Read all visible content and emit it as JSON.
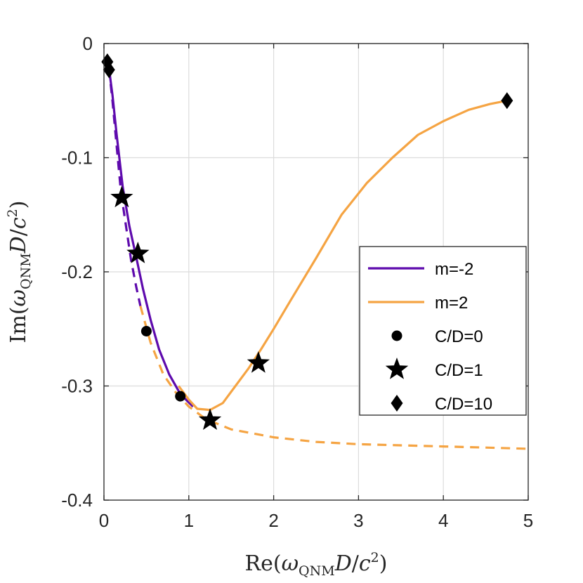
{
  "chart_data": {
    "type": "line",
    "xlabel": "Re(ω_QNM D/c²)",
    "ylabel": "Im(ω_QNM D/c²)",
    "xlabel_parts": {
      "pre": "Re(",
      "sym": "ω",
      "sub": "QNM",
      "mid": "D/c",
      "sup": "2",
      "post": ")"
    },
    "ylabel_parts": {
      "pre": "Im(",
      "sym": "ω",
      "sub": "QNM",
      "mid": "D/c",
      "sup": "2",
      "post": ")"
    },
    "xlim": [
      0,
      5
    ],
    "ylim": [
      -0.4,
      0
    ],
    "xticks": [
      0,
      1,
      2,
      3,
      4,
      5
    ],
    "yticks": [
      0,
      -0.1,
      -0.2,
      -0.3,
      -0.4
    ],
    "xtick_labels": [
      "0",
      "1",
      "2",
      "3",
      "4",
      "5"
    ],
    "ytick_labels": [
      "0",
      "-0.1",
      "-0.2",
      "-0.3",
      "-0.4"
    ],
    "grid": true,
    "legend_position": "right",
    "colors": {
      "m_neg2": "#5e0aad",
      "m_pos2": "#f5a443",
      "marker": "#000000",
      "grid": "#dcdcdc",
      "axis": "#262626"
    },
    "series": [
      {
        "name": "m=-2",
        "style": "solid",
        "color_key": "m_neg2",
        "x": [
          0.06,
          0.1,
          0.15,
          0.22,
          0.3,
          0.38,
          0.46,
          0.55,
          0.65,
          0.77,
          0.9,
          0.98,
          1.05
        ],
        "y": [
          -0.022,
          -0.045,
          -0.08,
          -0.125,
          -0.16,
          -0.187,
          -0.215,
          -0.242,
          -0.268,
          -0.29,
          -0.307,
          -0.313,
          -0.318
        ]
      },
      {
        "name": "m=-2 (dashed)",
        "style": "dashed",
        "color_key": "m_neg2",
        "x": [
          0.06,
          0.1,
          0.15,
          0.2,
          0.26,
          0.32,
          0.38,
          0.43
        ],
        "y": [
          -0.022,
          -0.05,
          -0.09,
          -0.13,
          -0.16,
          -0.19,
          -0.213,
          -0.23
        ]
      },
      {
        "name": "m=2",
        "style": "solid",
        "color_key": "m_pos2",
        "x": [
          0.88,
          1.0,
          1.1,
          1.25,
          1.4,
          1.55,
          1.7,
          1.85,
          2.0,
          2.2,
          2.5,
          2.8,
          3.1,
          3.4,
          3.7,
          4.0,
          4.3,
          4.55,
          4.75
        ],
        "y": [
          -0.3,
          -0.312,
          -0.32,
          -0.321,
          -0.315,
          -0.3,
          -0.285,
          -0.268,
          -0.25,
          -0.225,
          -0.188,
          -0.15,
          -0.122,
          -0.1,
          -0.08,
          -0.068,
          -0.058,
          -0.053,
          -0.05
        ]
      },
      {
        "name": "m=2 (dashed)",
        "style": "dashed",
        "color_key": "m_pos2",
        "x": [
          0.43,
          0.55,
          0.7,
          0.85,
          1.0,
          1.2,
          1.5,
          2.0,
          2.5,
          3.0,
          3.5,
          4.0,
          4.5,
          5.0
        ],
        "y": [
          -0.23,
          -0.262,
          -0.29,
          -0.306,
          -0.318,
          -0.329,
          -0.338,
          -0.345,
          -0.349,
          -0.351,
          -0.352,
          -0.353,
          -0.354,
          -0.355
        ]
      }
    ],
    "markers": [
      {
        "name": "C/D=0",
        "shape": "circle",
        "points": [
          [
            0.5,
            -0.252
          ],
          [
            0.9,
            -0.309
          ]
        ]
      },
      {
        "name": "C/D=1",
        "shape": "star",
        "points": [
          [
            0.21,
            -0.135
          ],
          [
            0.4,
            -0.184
          ],
          [
            1.25,
            -0.33
          ],
          [
            1.82,
            -0.28
          ]
        ]
      },
      {
        "name": "C/D=10",
        "shape": "diamond",
        "points": [
          [
            0.04,
            -0.016
          ],
          [
            0.06,
            -0.023
          ],
          [
            4.75,
            -0.05
          ]
        ]
      }
    ],
    "legend": [
      {
        "label": "m=-2",
        "kind": "line",
        "color_key": "m_neg2"
      },
      {
        "label": "m=2",
        "kind": "line",
        "color_key": "m_pos2"
      },
      {
        "label": "C/D=0",
        "kind": "circle"
      },
      {
        "label": "C/D=1",
        "kind": "star"
      },
      {
        "label": "C/D=10",
        "kind": "diamond"
      }
    ]
  }
}
